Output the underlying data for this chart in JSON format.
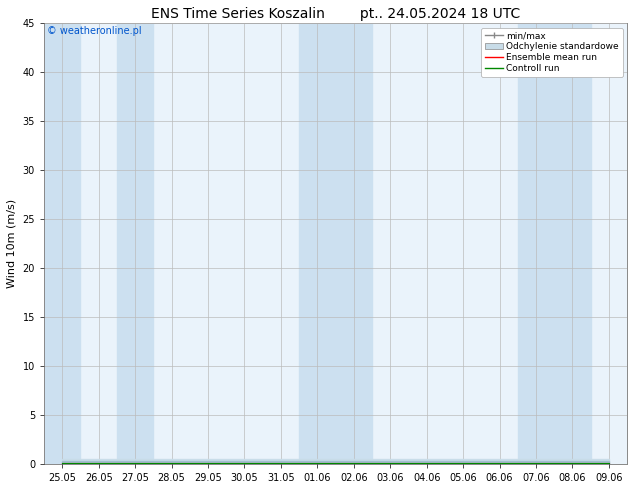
{
  "title": "ENS Time Series Koszalin        pt.. 24.05.2024 18 UTC",
  "ylabel": "Wind 10m (m/s)",
  "ylim": [
    0,
    45
  ],
  "yticks": [
    0,
    5,
    10,
    15,
    20,
    25,
    30,
    35,
    40,
    45
  ],
  "xtick_labels": [
    "25.05",
    "26.05",
    "27.05",
    "28.05",
    "29.05",
    "30.05",
    "31.05",
    "01.06",
    "02.06",
    "03.06",
    "04.06",
    "05.06",
    "06.06",
    "07.06",
    "08.06",
    "09.06"
  ],
  "background_color": "#ffffff",
  "plot_bg_color": "#eaf3fb",
  "band_color": "#cce0f0",
  "band_indices": [
    0,
    2,
    7,
    8,
    13,
    14
  ],
  "watermark": "© weatheronline.pl",
  "legend_labels": [
    "min/max",
    "Odchylenie standardowe",
    "Ensemble mean run",
    "Controll run"
  ],
  "legend_colors": [
    "#888888",
    "#c8dce8",
    "#ff0000",
    "#008800"
  ],
  "title_fontsize": 10,
  "tick_fontsize": 7,
  "ylabel_fontsize": 8,
  "num_days": 16,
  "wind_data_min": [
    0.0,
    0.0,
    0.0,
    0.0,
    0.0,
    0.0,
    0.0,
    0.0,
    0.0,
    0.0,
    0.0,
    0.0,
    0.0,
    0.0,
    0.0,
    0.0
  ],
  "wind_data_max": [
    0.3,
    0.3,
    0.3,
    0.3,
    0.3,
    0.3,
    0.3,
    0.3,
    0.3,
    0.3,
    0.3,
    0.3,
    0.3,
    0.3,
    0.3,
    0.3
  ],
  "wind_std_min": [
    0.0,
    0.0,
    0.0,
    0.0,
    0.0,
    0.0,
    0.0,
    0.0,
    0.0,
    0.0,
    0.0,
    0.0,
    0.0,
    0.0,
    0.0,
    0.0
  ],
  "wind_std_max": [
    0.5,
    0.5,
    0.5,
    0.5,
    0.5,
    0.5,
    0.5,
    0.5,
    0.5,
    0.5,
    0.5,
    0.5,
    0.5,
    0.5,
    0.5,
    0.5
  ],
  "wind_mean": [
    0.15,
    0.15,
    0.15,
    0.15,
    0.15,
    0.15,
    0.15,
    0.15,
    0.15,
    0.15,
    0.15,
    0.15,
    0.15,
    0.15,
    0.15,
    0.15
  ],
  "wind_control": [
    0.15,
    0.15,
    0.15,
    0.15,
    0.15,
    0.15,
    0.15,
    0.15,
    0.15,
    0.15,
    0.15,
    0.15,
    0.15,
    0.15,
    0.15,
    0.15
  ]
}
